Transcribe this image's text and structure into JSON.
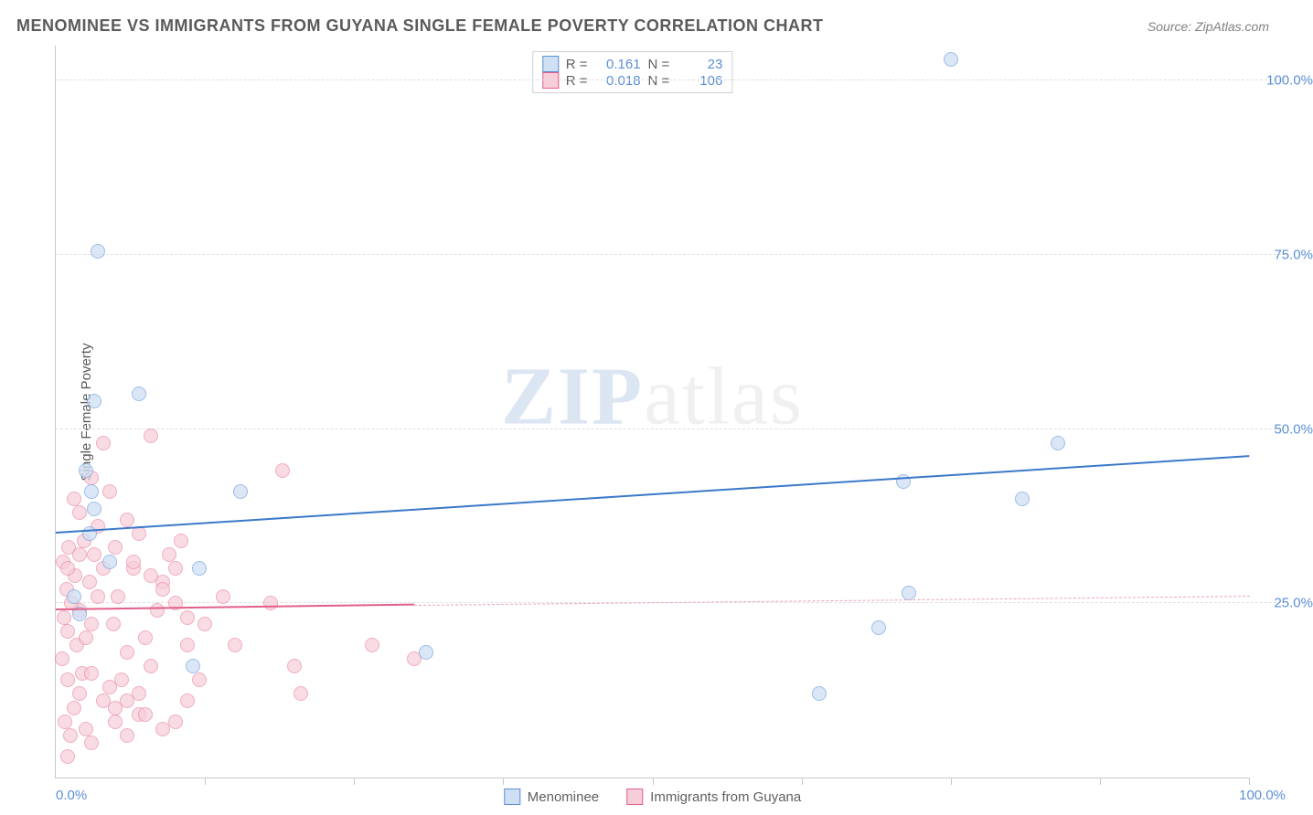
{
  "title": "MENOMINEE VS IMMIGRANTS FROM GUYANA SINGLE FEMALE POVERTY CORRELATION CHART",
  "source_prefix": "Source: ",
  "source_name": "ZipAtlas.com",
  "watermark_zip": "ZIP",
  "watermark_rest": "atlas",
  "ylabel": "Single Female Poverty",
  "chart": {
    "type": "scatter",
    "xlim": [
      0,
      100
    ],
    "ylim": [
      0,
      105
    ],
    "y_ticks": [
      25,
      50,
      75,
      100
    ],
    "y_tick_labels": [
      "25.0%",
      "50.0%",
      "75.0%",
      "100.0%"
    ],
    "x_ticks": [
      12.5,
      25,
      37.5,
      50,
      62.5,
      75,
      87.5,
      100
    ],
    "x_min_label": "0.0%",
    "x_max_label": "100.0%",
    "grid_color": "#e0e0e0",
    "axis_color": "#c8c8c8",
    "background_color": "#ffffff",
    "series": [
      {
        "name": "Menominee",
        "color_fill": "#cfe0f4",
        "color_stroke": "#7aa8de",
        "swatch_stroke": "#5b8fd6",
        "marker_radius": 8,
        "marker_opacity": 0.75,
        "R": "0.161",
        "N": "23",
        "trend": {
          "x0": 0,
          "y0": 35,
          "x1": 100,
          "y1": 46,
          "color": "#3b78c9",
          "width": 2.5,
          "dash": "solid"
        },
        "points": [
          [
            3.5,
            75.5
          ],
          [
            3.2,
            54
          ],
          [
            3,
            41
          ],
          [
            3.2,
            38.5
          ],
          [
            2.8,
            35
          ],
          [
            4.5,
            31
          ],
          [
            2,
            23.5
          ],
          [
            12,
            30
          ],
          [
            11.5,
            16
          ],
          [
            15.5,
            41
          ],
          [
            64,
            12
          ],
          [
            69,
            21.5
          ],
          [
            71.5,
            26.5
          ],
          [
            71,
            42.5
          ],
          [
            75,
            103
          ],
          [
            81,
            40
          ],
          [
            84,
            48
          ],
          [
            31,
            18
          ],
          [
            7,
            55
          ],
          [
            1.5,
            26
          ],
          [
            2.5,
            44
          ]
        ]
      },
      {
        "name": "Immigrants from Guyana",
        "color_fill": "#f7cdd9",
        "color_stroke": "#e98ba6",
        "swatch_stroke": "#e26088",
        "marker_radius": 8,
        "marker_opacity": 0.7,
        "R": "0.018",
        "N": "106",
        "trend_solid": {
          "x0": 0,
          "y0": 24,
          "x1": 30,
          "y1": 24.7,
          "color": "#e26088",
          "width": 2.5
        },
        "trend_dash": {
          "x0": 30,
          "y0": 24.7,
          "x1": 100,
          "y1": 26,
          "color": "#e9a2b6",
          "width": 1.5
        },
        "points": [
          [
            1,
            3
          ],
          [
            1.2,
            6
          ],
          [
            0.8,
            8
          ],
          [
            1.5,
            10
          ],
          [
            2,
            12
          ],
          [
            1,
            14
          ],
          [
            2.2,
            15
          ],
          [
            0.5,
            17
          ],
          [
            1.8,
            19
          ],
          [
            2.5,
            20
          ],
          [
            1,
            21
          ],
          [
            3,
            22
          ],
          [
            0.7,
            23
          ],
          [
            2,
            24
          ],
          [
            1.3,
            25
          ],
          [
            3.5,
            26
          ],
          [
            0.9,
            27
          ],
          [
            2.8,
            28
          ],
          [
            1.6,
            29
          ],
          [
            4,
            30
          ],
          [
            0.6,
            31
          ],
          [
            3.2,
            32
          ],
          [
            1.1,
            33
          ],
          [
            2.4,
            34
          ],
          [
            5,
            10
          ],
          [
            5.5,
            14
          ],
          [
            6,
            18
          ],
          [
            4.8,
            22
          ],
          [
            5.2,
            26
          ],
          [
            6.5,
            30
          ],
          [
            7,
            12
          ],
          [
            7.5,
            20
          ],
          [
            8,
            16
          ],
          [
            8.5,
            24
          ],
          [
            9,
            28
          ],
          [
            9.5,
            32
          ],
          [
            10,
            8
          ],
          [
            10.5,
            34
          ],
          [
            11,
            19
          ],
          [
            12,
            14
          ],
          [
            8,
            49
          ],
          [
            4,
            48
          ],
          [
            4.5,
            41
          ],
          [
            3,
            43
          ],
          [
            6,
            37
          ],
          [
            7,
            35
          ],
          [
            19,
            44
          ],
          [
            18,
            25
          ],
          [
            20,
            16
          ],
          [
            20.5,
            12
          ],
          [
            26.5,
            19
          ],
          [
            30,
            17
          ],
          [
            10,
            30
          ],
          [
            11,
            11
          ],
          [
            12.5,
            22
          ],
          [
            14,
            26
          ],
          [
            15,
            19
          ],
          [
            2.5,
            7
          ],
          [
            3,
            5
          ],
          [
            4,
            11
          ],
          [
            5,
            8
          ],
          [
            6,
            6
          ],
          [
            7,
            9
          ],
          [
            2,
            38
          ],
          [
            3.5,
            36
          ],
          [
            5,
            33
          ],
          [
            6.5,
            31
          ],
          [
            8,
            29
          ],
          [
            9,
            27
          ],
          [
            10,
            25
          ],
          [
            11,
            23
          ],
          [
            1.5,
            40
          ],
          [
            3,
            15
          ],
          [
            4.5,
            13
          ],
          [
            6,
            11
          ],
          [
            7.5,
            9
          ],
          [
            9,
            7
          ],
          [
            1,
            30
          ],
          [
            2,
            32
          ]
        ]
      }
    ],
    "r_label": "R =",
    "n_label": "N ="
  }
}
